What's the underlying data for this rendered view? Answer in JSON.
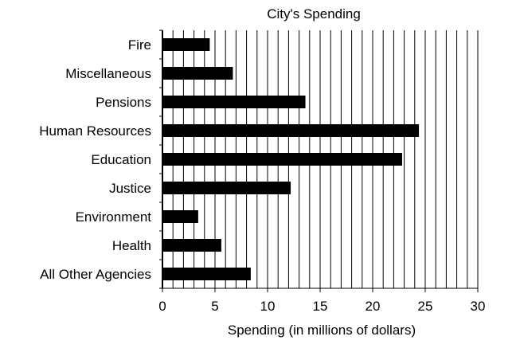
{
  "chart_data": {
    "type": "bar",
    "orientation": "horizontal",
    "title": "City's Spending",
    "xlabel": "Spending (in millions of dollars)",
    "ylabel": "",
    "categories": [
      "Fire",
      "Miscellaneous",
      "Pensions",
      "Human Resources",
      "Education",
      "Justice",
      "Environment",
      "Health",
      "All Other Agencies"
    ],
    "values": [
      4.5,
      6.7,
      13.6,
      24.4,
      22.8,
      12.2,
      3.4,
      5.6,
      8.4
    ],
    "xlim": [
      0,
      30
    ],
    "x_ticks": [
      "0",
      "5",
      "10",
      "15",
      "20",
      "25",
      "30"
    ],
    "minor_grid_step": 1,
    "grid": "vertical",
    "bar_color": "#000000",
    "legend": "none"
  }
}
